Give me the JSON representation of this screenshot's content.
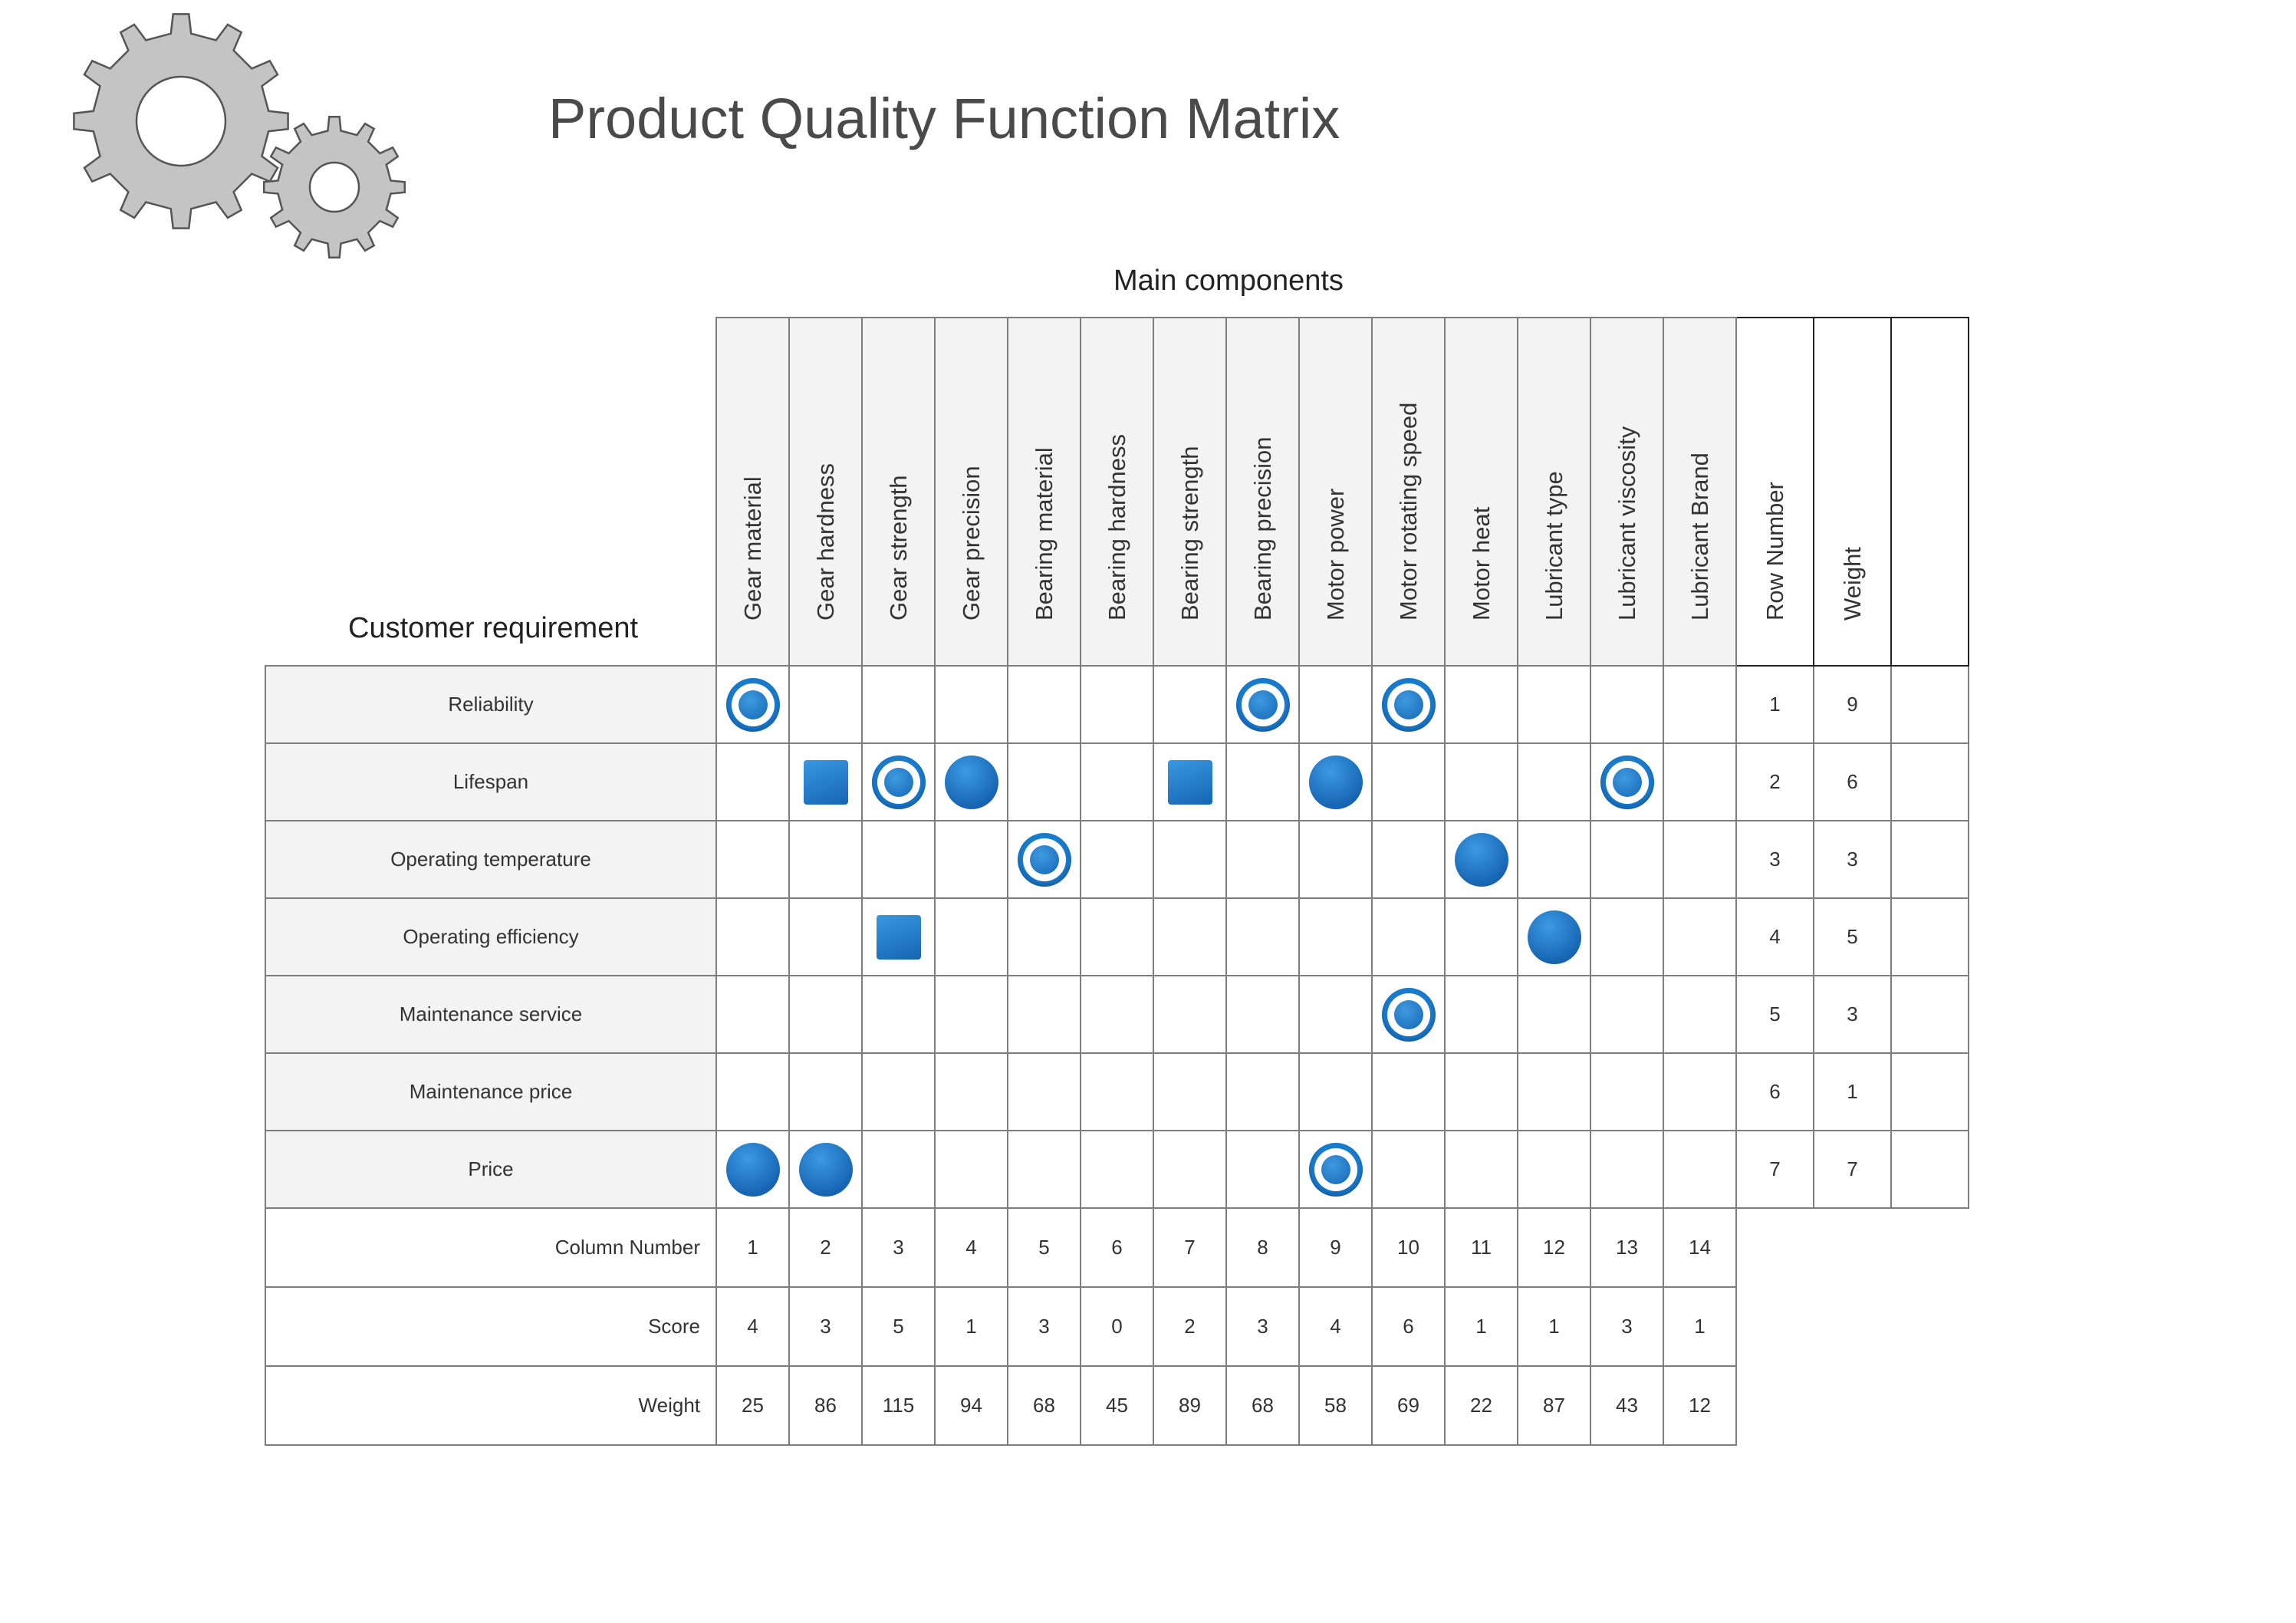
{
  "title": "Product Quality Function Matrix",
  "components_heading": "Main components",
  "requirements_heading": "Customer requirement",
  "columns": [
    "Gear material",
    "Gear hardness",
    "Gear strength",
    "Gear precision",
    "Bearing material",
    "Bearing hardness",
    "Bearing strength",
    "Bearing precision",
    "Motor power",
    "Motor rotating speed",
    "Motor heat",
    "Lubricant type",
    "Lubricant viscosity",
    "Lubricant Brand"
  ],
  "side_headers": [
    "Row Number",
    "Weight"
  ],
  "rows": [
    {
      "label": "Reliability",
      "row_number": "1",
      "weight": "9",
      "marks": [
        "strong",
        "",
        "",
        "",
        "",
        "",
        "",
        "strong",
        "",
        "strong",
        "",
        "",
        "",
        ""
      ]
    },
    {
      "label": "Lifespan",
      "row_number": "2",
      "weight": "6",
      "marks": [
        "",
        "weak",
        "strong",
        "medium",
        "",
        "",
        "weak",
        "",
        "medium",
        "",
        "",
        "",
        "strong",
        ""
      ]
    },
    {
      "label": "Operating temperature",
      "row_number": "3",
      "weight": "3",
      "marks": [
        "",
        "",
        "",
        "",
        "strong",
        "",
        "",
        "",
        "",
        "",
        "medium",
        "",
        "",
        ""
      ]
    },
    {
      "label": "Operating efficiency",
      "row_number": "4",
      "weight": "5",
      "marks": [
        "",
        "",
        "weak",
        "",
        "",
        "",
        "",
        "",
        "",
        "",
        "",
        "medium",
        "",
        ""
      ]
    },
    {
      "label": "Maintenance service",
      "row_number": "5",
      "weight": "3",
      "marks": [
        "",
        "",
        "",
        "",
        "",
        "",
        "",
        "",
        "",
        "strong",
        "",
        "",
        "",
        ""
      ]
    },
    {
      "label": "Maintenance price",
      "row_number": "6",
      "weight": "1",
      "marks": [
        "",
        "",
        "",
        "",
        "",
        "",
        "",
        "",
        "",
        "",
        "",
        "",
        "",
        ""
      ]
    },
    {
      "label": "Price",
      "row_number": "7",
      "weight": "7",
      "marks": [
        "medium",
        "medium",
        "",
        "",
        "",
        "",
        "",
        "",
        "strong",
        "",
        "",
        "",
        "",
        ""
      ]
    }
  ],
  "footer": [
    {
      "label": "Column Number",
      "values": [
        "1",
        "2",
        "3",
        "4",
        "5",
        "6",
        "7",
        "8",
        "9",
        "10",
        "11",
        "12",
        "13",
        "14"
      ]
    },
    {
      "label": "Score",
      "values": [
        "4",
        "3",
        "5",
        "1",
        "3",
        "0",
        "2",
        "3",
        "4",
        "6",
        "1",
        "1",
        "3",
        "1"
      ]
    },
    {
      "label": "Weight",
      "values": [
        "25",
        "86",
        "115",
        "94",
        "68",
        "45",
        "89",
        "68",
        "58",
        "69",
        "22",
        "87",
        "43",
        "12"
      ]
    }
  ],
  "colors": {
    "symbol_blue": "#1b7ccc",
    "header_bg": "#f3f3f3",
    "gear_fill": "#c4c4c4"
  },
  "icons": {
    "logo": "gears-icon",
    "strong": "double-circle-icon",
    "medium": "filled-circle-icon",
    "weak": "filled-square-icon"
  }
}
